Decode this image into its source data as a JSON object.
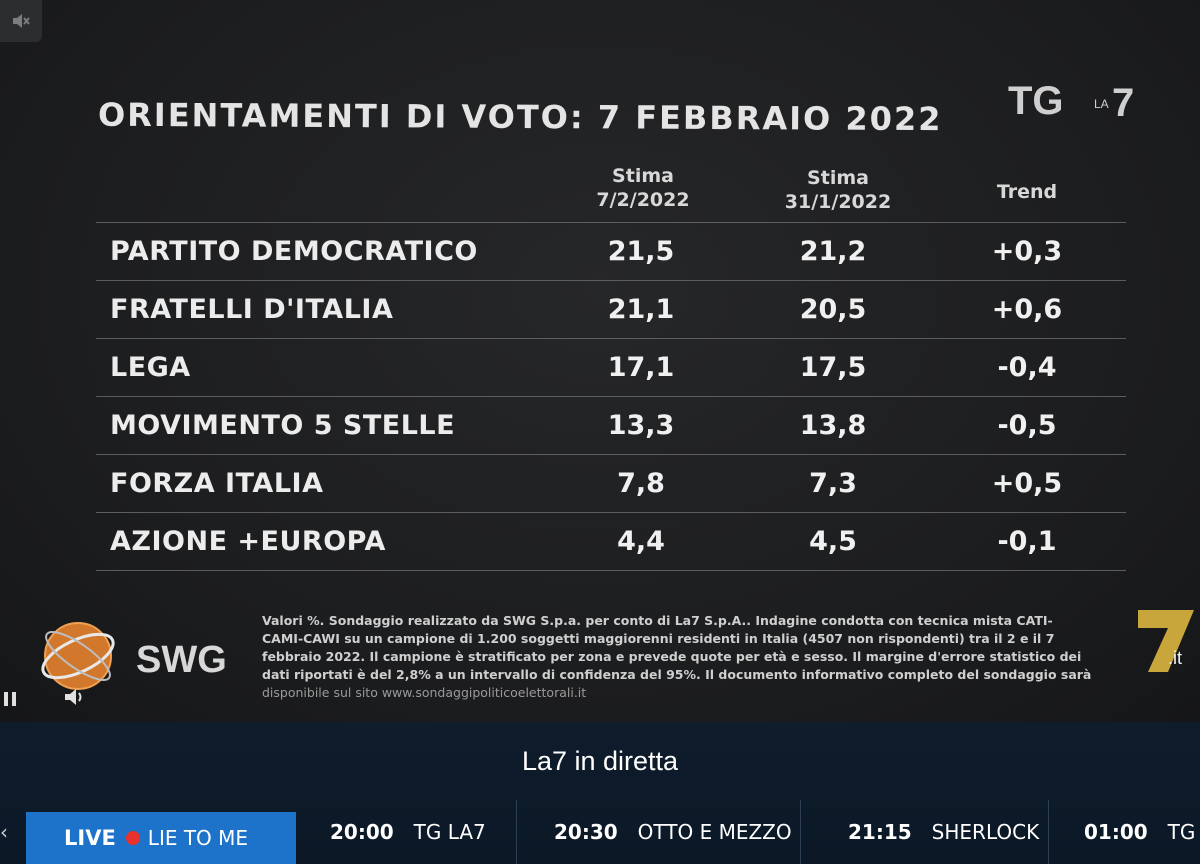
{
  "chart_data": {
    "type": "table",
    "title": "ORIENTAMENTI DI VOTO: 7 FEBBRAIO 2022",
    "columns": [
      {
        "line1": "Stima",
        "line2": "7/2/2022"
      },
      {
        "line1": "Stima",
        "line2": "31/1/2022"
      },
      {
        "line1": "Trend",
        "line2": ""
      }
    ],
    "rows": [
      {
        "party": "PARTITO DEMOCRATICO",
        "v1": "21,5",
        "v2": "21,2",
        "trend": "+0,3"
      },
      {
        "party": "FRATELLI D'ITALIA",
        "v1": "21,1",
        "v2": "20,5",
        "trend": "+0,6"
      },
      {
        "party": "LEGA",
        "v1": "17,1",
        "v2": "17,5",
        "trend": "-0,4"
      },
      {
        "party": "MOVIMENTO 5 STELLE",
        "v1": "13,3",
        "v2": "13,8",
        "trend": "-0,5"
      },
      {
        "party": "FORZA ITALIA",
        "v1": "7,8",
        "v2": "7,3",
        "trend": "+0,5"
      },
      {
        "party": "AZIONE +EUROPA",
        "v1": "4,4",
        "v2": "4,5",
        "trend": "-0,1"
      }
    ]
  },
  "broadcaster": {
    "logo_tg": "TG",
    "logo_la": "LA",
    "logo_7": "7",
    "logo_it": ".it"
  },
  "source": {
    "logo_text": "SWG",
    "note_lines": [
      "Valori %. Sondaggio realizzato da SWG S.p.a. per conto di La7 S.p.A.. Indagine condotta con tecnica mista CATI-",
      "CAMI-CAWI su un campione di 1.200 soggetti maggiorenni residenti in Italia (4507 non rispondenti) tra il 2 e il 7",
      "febbraio 2022. Il campione è stratificato per zona e prevede quote per età e sesso. Il margine d'errore statistico dei",
      "dati riportati è del 2,8% a un intervallo di confidenza del 95%. Il documento informativo completo del sondaggio sarà"
    ],
    "note_last": "disponibile sul sito www.sondaggipoliticoelettorali.it"
  },
  "player": {
    "mute_icon": "speaker-muted-icon",
    "pause_icon": "pause-icon",
    "volume_icon": "volume-icon"
  },
  "guide": {
    "title": "La7 in diretta",
    "live_label": "LIVE",
    "live_program": "LIE TO ME",
    "slots": [
      {
        "time": "20:00",
        "program": "TG LA7"
      },
      {
        "time": "20:30",
        "program": "OTTO E MEZZO"
      },
      {
        "time": "21:15",
        "program": "SHERLOCK"
      },
      {
        "time": "01:00",
        "program": "TG L"
      }
    ]
  },
  "colors": {
    "live_bg": "#1c73c9",
    "live_dot": "#e8322b",
    "bar_bg": "#0e1c2c"
  }
}
